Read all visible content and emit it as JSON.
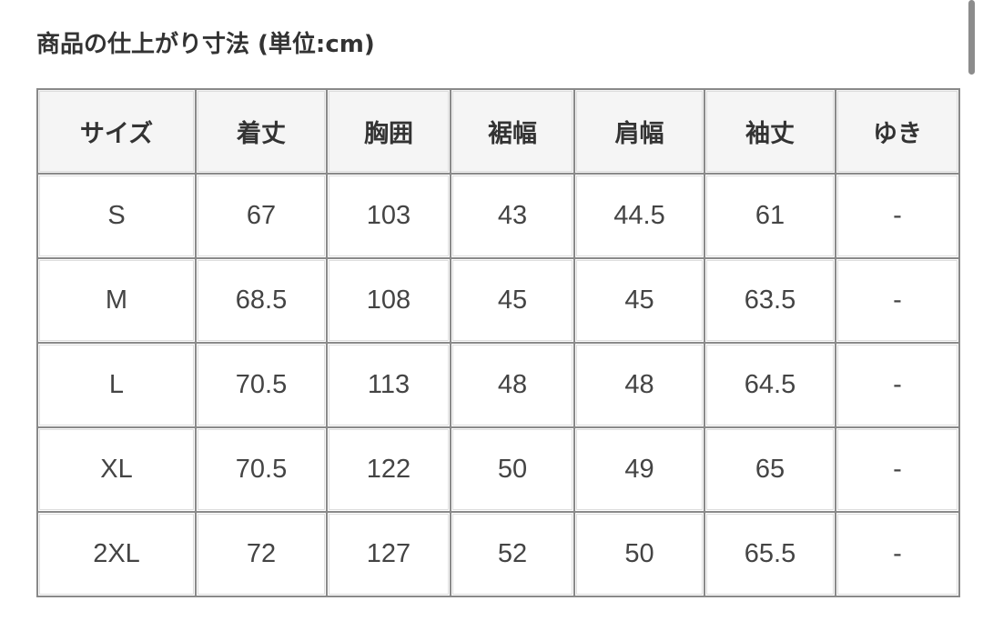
{
  "title": "商品の仕上がり寸法 (単位:cm)",
  "table": {
    "headers": [
      "サイズ",
      "着丈",
      "胸囲",
      "裾幅",
      "肩幅",
      "袖丈",
      "ゆき"
    ],
    "rows": [
      [
        "S",
        "67",
        "103",
        "43",
        "44.5",
        "61",
        "-"
      ],
      [
        "M",
        "68.5",
        "108",
        "45",
        "45",
        "63.5",
        "-"
      ],
      [
        "L",
        "70.5",
        "113",
        "48",
        "48",
        "64.5",
        "-"
      ],
      [
        "XL",
        "70.5",
        "122",
        "50",
        "49",
        "65",
        "-"
      ],
      [
        "2XL",
        "72",
        "127",
        "52",
        "50",
        "65.5",
        "-"
      ]
    ]
  }
}
